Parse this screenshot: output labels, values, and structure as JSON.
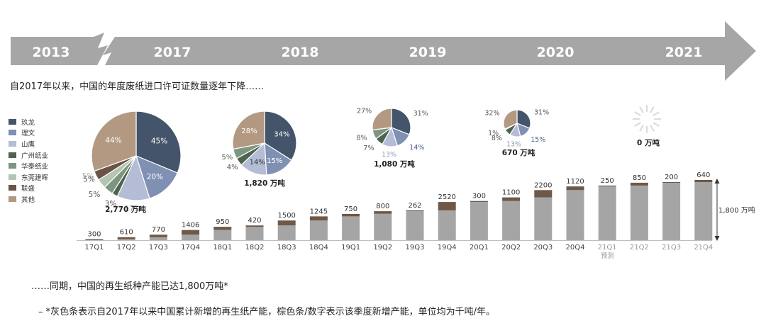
{
  "timeline": {
    "years": [
      "2013",
      "2017",
      "2018",
      "2019",
      "2020",
      "2021"
    ],
    "color": "#a6a6a6"
  },
  "headline": "自2017年以来，中国的年度废纸进口许可证数量逐年下降……",
  "footer_line1": "……同期，中国的再生纸种产能已达1,800万吨*",
  "footer_line2": "–  *灰色条表示自2017年以来中国累计新增的再生纸产能，棕色条/数字表示该季度新增产能，单位均为千吨/年。",
  "colors": {
    "gray_bar": "#a5a5a5",
    "brown_bar": "#6e5847",
    "text_gray": "#999999"
  },
  "legend": [
    {
      "name": "玖龙",
      "color": "#44546a"
    },
    {
      "name": "理文",
      "color": "#7f90b3"
    },
    {
      "name": "山鹰",
      "color": "#b4bcd6"
    },
    {
      "name": "广州纸业",
      "color": "#4f6350"
    },
    {
      "name": "华泰纸业",
      "color": "#7e967f"
    },
    {
      "name": "东莞建晖",
      "color": "#b5c5b4"
    },
    {
      "name": "联盛",
      "color": "#6a5446"
    },
    {
      "name": "其他",
      "color": "#b39982"
    }
  ],
  "chart_data": [
    {
      "type": "pie",
      "title": "2,770 万吨",
      "slice_labels": [
        "45%",
        "20%",
        "17%",
        "3%",
        "5%",
        "5%",
        "5%",
        "44%"
      ],
      "slices": [
        {
          "name": "玖龙",
          "value": 45
        },
        {
          "name": "理文",
          "value": 20
        },
        {
          "name": "山鹰",
          "value": 17
        },
        {
          "name": "广州纸业",
          "value": 3
        },
        {
          "name": "华泰纸业",
          "value": 5
        },
        {
          "name": "东莞建晖",
          "value": 5
        },
        {
          "name": "联盛",
          "value": 5
        },
        {
          "name": "其他",
          "value": 44
        }
      ]
    },
    {
      "type": "pie",
      "title": "1,820 万吨",
      "slice_labels": [
        "34%",
        "15%",
        "14%",
        "4%",
        "5%",
        "28%"
      ],
      "slices": [
        {
          "name": "玖龙",
          "value": 34
        },
        {
          "name": "理文",
          "value": 15
        },
        {
          "name": "山鹰",
          "value": 14
        },
        {
          "name": "广州纸业",
          "value": 4
        },
        {
          "name": "华泰纸业",
          "value": 5
        },
        {
          "name": "其他",
          "value": 28
        }
      ]
    },
    {
      "type": "pie",
      "title": "1,080 万吨",
      "slice_labels": [
        "31%",
        "14%",
        "13%",
        "7%",
        "8%",
        "27%"
      ],
      "slices": [
        {
          "name": "玖龙",
          "value": 31
        },
        {
          "name": "理文",
          "value": 14
        },
        {
          "name": "山鹰",
          "value": 13
        },
        {
          "name": "广州纸业",
          "value": 7
        },
        {
          "name": "华泰纸业",
          "value": 8
        },
        {
          "name": "其他",
          "value": 27
        }
      ]
    },
    {
      "type": "pie",
      "title": "670 万吨",
      "slice_labels": [
        "31%",
        "15%",
        "13%",
        "8%",
        "1%",
        "32%"
      ],
      "slices": [
        {
          "name": "玖龙",
          "value": 31
        },
        {
          "name": "理文",
          "value": 15
        },
        {
          "name": "山鹰",
          "value": 13
        },
        {
          "name": "广州纸业",
          "value": 8
        },
        {
          "name": "华泰纸业",
          "value": 1
        },
        {
          "name": "其他",
          "value": 32
        }
      ]
    },
    {
      "type": "pie",
      "title": "0 万吨",
      "slice_labels": [],
      "slices": []
    },
    {
      "type": "bar",
      "stacked": true,
      "categories": [
        "17Q1",
        "17Q2",
        "17Q3",
        "17Q4",
        "18Q1",
        "18Q2",
        "18Q3",
        "18Q4",
        "19Q1",
        "19Q2",
        "19Q3",
        "19Q4",
        "20Q1",
        "20Q2",
        "20Q3",
        "20Q4",
        "21Q1",
        "21Q2",
        "21Q3",
        "21Q4"
      ],
      "series": [
        {
          "values": [
            0,
            300,
            910,
            1680,
            3086,
            4036,
            4456,
            5956,
            7201,
            7951,
            8751,
            9013,
            11533,
            11833,
            12933,
            15133,
            16253,
            16503,
            17353,
            17553
          ]
        },
        {
          "values": [
            300,
            610,
            770,
            1406,
            950,
            420,
            1500,
            1245,
            750,
            800,
            262,
            2520,
            300,
            1100,
            2200,
            1120,
            250,
            850,
            200,
            640
          ]
        }
      ],
      "data_labels": [
        "300",
        "610",
        "770",
        "1406",
        "950",
        "420",
        "1500",
        "1245",
        "750",
        "800",
        "262",
        "2520",
        "300",
        "1100",
        "2200",
        "1120",
        "250",
        "850",
        "200",
        "640"
      ],
      "forecast_start": "21Q1",
      "forecast_label": "预测",
      "ylim": [
        0,
        18193
      ],
      "total_annotation": "1,800 万吨"
    }
  ]
}
